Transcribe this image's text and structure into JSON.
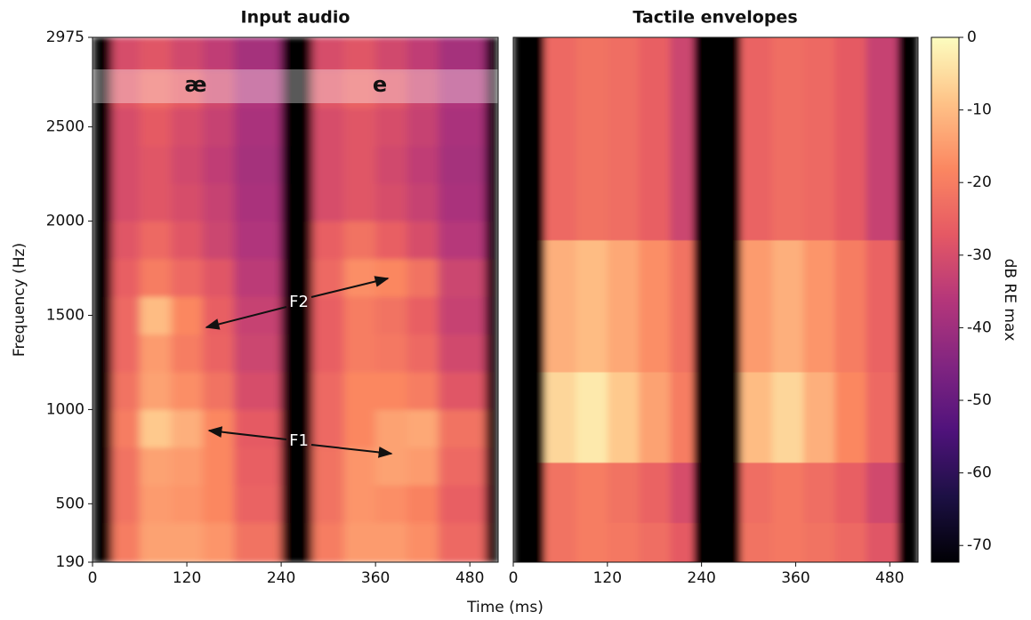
{
  "chart_data": [
    {
      "type": "heatmap",
      "title": "Input audio",
      "xlabel": "Time (ms)",
      "ylabel": "Frequency (Hz)",
      "colormap": "magma",
      "xlim": [
        0,
        516
      ],
      "xticks": [
        0,
        120,
        240,
        360,
        480
      ],
      "ylim": [
        190,
        2975
      ],
      "yticks": [
        190,
        500,
        1000,
        1500,
        2000,
        2500,
        2975
      ],
      "x_edges": [
        0,
        25,
        60,
        100,
        140,
        180,
        240,
        280,
        320,
        360,
        400,
        440,
        500,
        516
      ],
      "y_edges": [
        190,
        400,
        600,
        800,
        1000,
        1200,
        1400,
        1600,
        1800,
        2000,
        2200,
        2400,
        2600,
        2800,
        2975
      ],
      "z": [
        [
          -72,
          -20,
          -14,
          -14,
          -16,
          -22,
          -72,
          -20,
          -15,
          -15,
          -17,
          -24,
          -72
        ],
        [
          -72,
          -22,
          -15,
          -16,
          -18,
          -25,
          -72,
          -22,
          -16,
          -17,
          -19,
          -26,
          -72
        ],
        [
          -72,
          -22,
          -14,
          -15,
          -18,
          -26,
          -72,
          -22,
          -16,
          -14,
          -15,
          -24,
          -72
        ],
        [
          -72,
          -20,
          -8,
          -12,
          -18,
          -27,
          -72,
          -24,
          -18,
          -14,
          -13,
          -22,
          -72
        ],
        [
          -72,
          -22,
          -14,
          -17,
          -22,
          -30,
          -72,
          -24,
          -18,
          -18,
          -20,
          -28,
          -72
        ],
        [
          -72,
          -24,
          -15,
          -20,
          -25,
          -32,
          -72,
          -26,
          -20,
          -21,
          -24,
          -31,
          -72
        ],
        [
          -72,
          -24,
          -10,
          -18,
          -26,
          -33,
          -72,
          -26,
          -20,
          -22,
          -26,
          -33,
          -72
        ],
        [
          -72,
          -26,
          -20,
          -24,
          -28,
          -35,
          -72,
          -24,
          -17,
          -18,
          -22,
          -32,
          -72
        ],
        [
          -72,
          -28,
          -24,
          -28,
          -32,
          -37,
          -72,
          -26,
          -22,
          -26,
          -30,
          -36,
          -72
        ],
        [
          -72,
          -30,
          -28,
          -30,
          -33,
          -38,
          -72,
          -30,
          -28,
          -30,
          -33,
          -38,
          -72
        ],
        [
          -72,
          -30,
          -28,
          -31,
          -34,
          -39,
          -72,
          -30,
          -28,
          -31,
          -34,
          -39,
          -72
        ],
        [
          -72,
          -30,
          -27,
          -30,
          -33,
          -38,
          -72,
          -30,
          -28,
          -30,
          -33,
          -38,
          -72
        ],
        [
          -72,
          -28,
          -24,
          -27,
          -31,
          -37,
          -72,
          -28,
          -25,
          -28,
          -32,
          -37,
          -72
        ],
        [
          -72,
          -30,
          -28,
          -31,
          -34,
          -39,
          -72,
          -30,
          -28,
          -31,
          -34,
          -39,
          -72
        ]
      ],
      "annotations": [
        "æ",
        "e",
        "F2",
        "F1"
      ]
    },
    {
      "type": "heatmap",
      "title": "Tactile envelopes",
      "colormap": "magma",
      "xlim": [
        0,
        516
      ],
      "xticks": [
        0,
        120,
        240,
        360,
        480
      ],
      "ylim": [
        190,
        2975
      ],
      "x_edges": [
        0,
        40,
        80,
        120,
        160,
        200,
        230,
        290,
        330,
        370,
        410,
        450,
        490,
        516
      ],
      "y_edges": [
        190,
        400,
        720,
        1200,
        1900,
        2975
      ],
      "z": [
        [
          -72,
          -22,
          -20,
          -21,
          -23,
          -27,
          -72,
          -22,
          -21,
          -22,
          -24,
          -28,
          -72
        ],
        [
          -72,
          -22,
          -20,
          -22,
          -25,
          -30,
          -72,
          -23,
          -21,
          -23,
          -26,
          -31,
          -72
        ],
        [
          -72,
          -6,
          -3,
          -8,
          -14,
          -20,
          -72,
          -10,
          -6,
          -12,
          -18,
          -24,
          -72
        ],
        [
          -72,
          -12,
          -10,
          -13,
          -17,
          -22,
          -72,
          -15,
          -12,
          -16,
          -20,
          -25,
          -72
        ],
        [
          -72,
          -24,
          -22,
          -23,
          -26,
          -32,
          -72,
          -25,
          -23,
          -24,
          -27,
          -33,
          -72
        ]
      ],
      "colorbar": {
        "label": "dB RE max",
        "lim": [
          -72.3,
          0
        ],
        "ticks": [
          0,
          -10,
          -20,
          -30,
          -40,
          -50,
          -60,
          -70
        ]
      }
    }
  ]
}
